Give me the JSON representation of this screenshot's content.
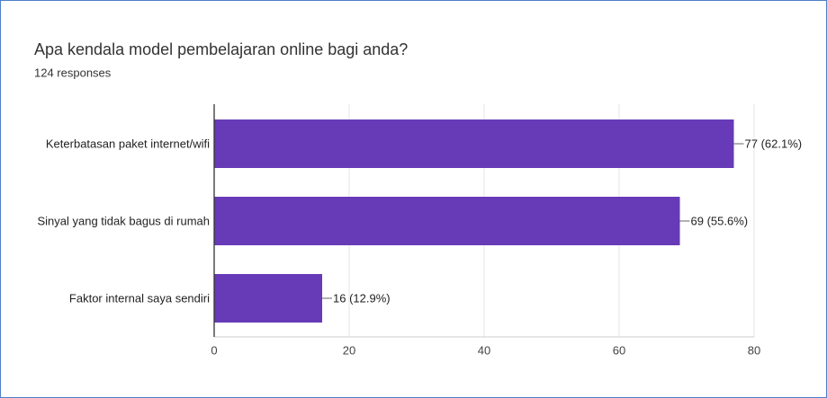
{
  "chart_data": {
    "type": "bar",
    "orientation": "horizontal",
    "title": "Apa kendala model pembelajaran online bagi anda?",
    "subtitle": "124 responses",
    "categories": [
      "Keterbatasan paket internet/wifi",
      "Sinyal yang tidak bagus di rumah",
      "Faktor internal saya sendiri"
    ],
    "values": [
      77,
      69,
      16
    ],
    "value_labels": [
      "77 (62.1%)",
      "69 (55.6%)",
      "16 (12.9%)"
    ],
    "color": "#673ab7",
    "xlim": [
      0,
      80
    ],
    "xticks": [
      0,
      20,
      40,
      60,
      80
    ],
    "grid": true
  }
}
